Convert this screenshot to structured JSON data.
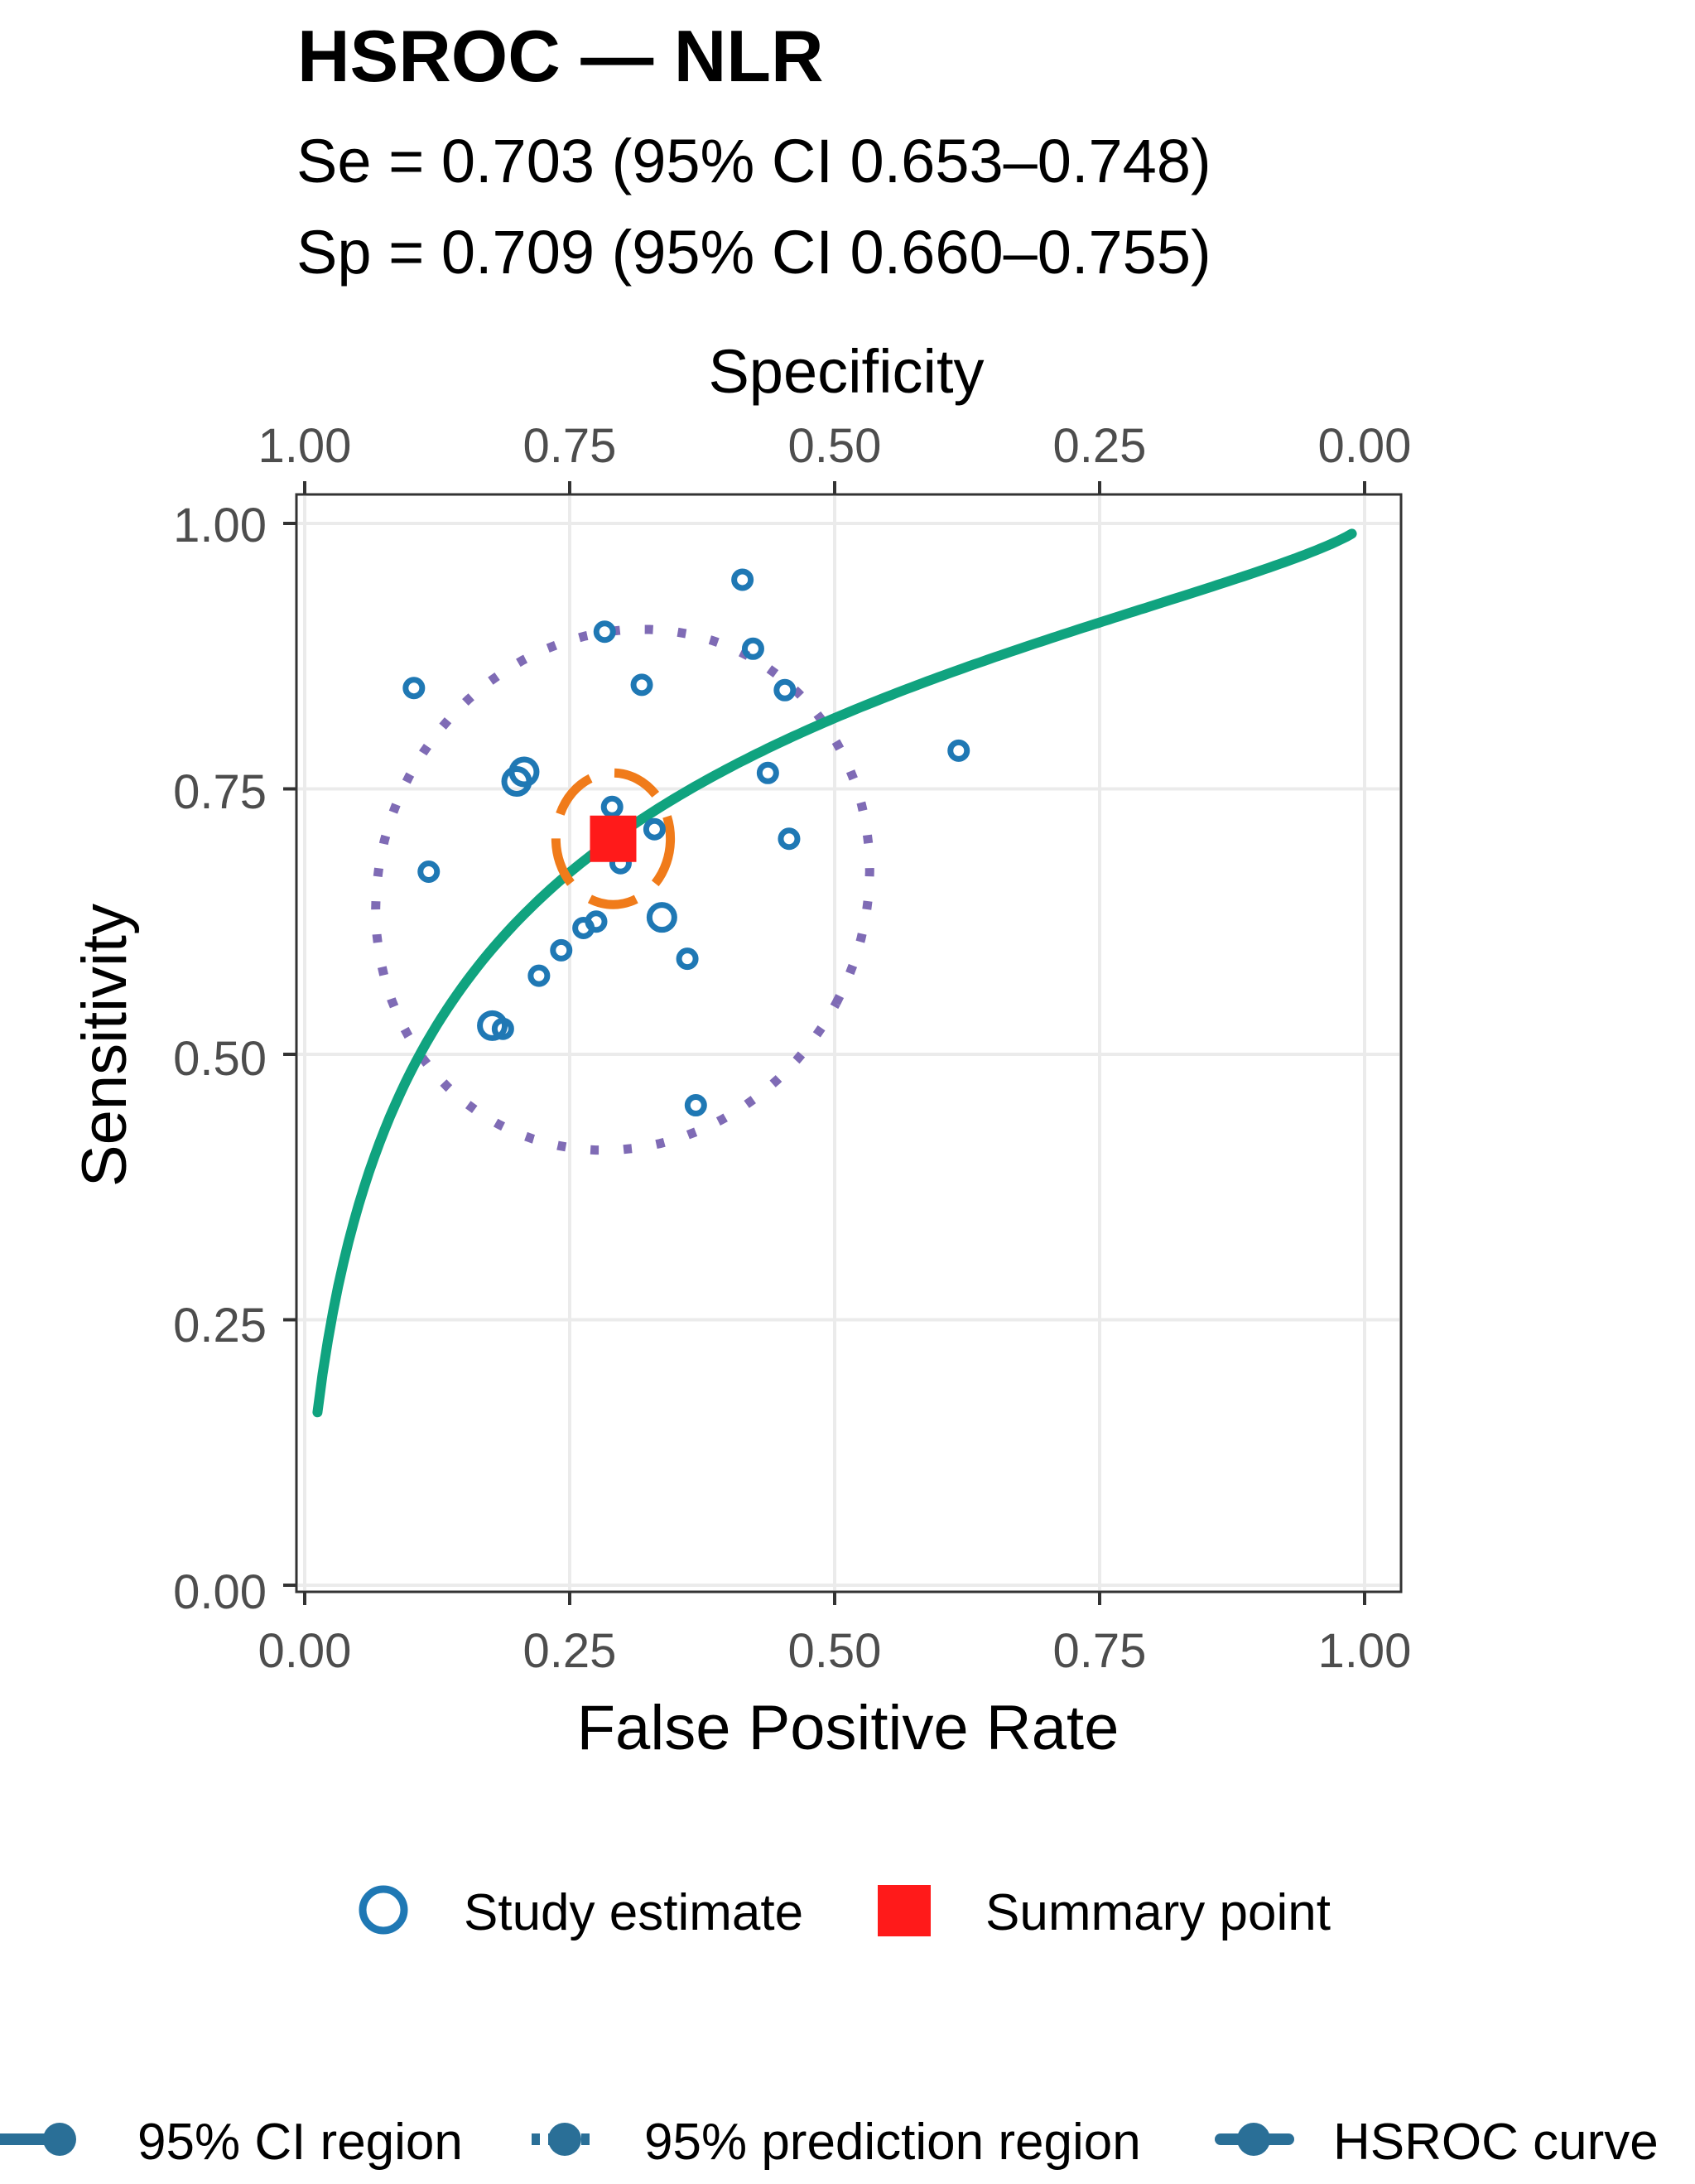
{
  "chart_data": {
    "type": "scatter",
    "title": "HSROC — NLR",
    "subtitle_lines": [
      "Se = 0.703 (95% CI 0.653–0.748)",
      "Sp = 0.709 (95% CI 0.660–0.755)"
    ],
    "xlabel": "False Positive Rate",
    "ylabel": "Sensitivity",
    "top_xlabel": "Specificity",
    "xlim": [
      0,
      1
    ],
    "ylim": [
      0,
      1
    ],
    "x_ticks": [
      "0.00",
      "0.25",
      "0.50",
      "0.75",
      "1.00"
    ],
    "y_ticks": [
      "0.00",
      "0.25",
      "0.50",
      "0.75",
      "1.00"
    ],
    "top_ticks": [
      "1.00",
      "0.75",
      "0.50",
      "0.25",
      "0.00"
    ],
    "grid": true,
    "colors": {
      "study": "#1f78b4",
      "summary": "#ff1a1a",
      "curve": "#10a37f",
      "ci_region": "#f07b1a",
      "prediction_region": "#7f6bb5",
      "legend_marker": "#2a6f97"
    },
    "study_points": [
      {
        "x": 0.413,
        "y": 0.947,
        "size": "small"
      },
      {
        "x": 0.283,
        "y": 0.898,
        "size": "small"
      },
      {
        "x": 0.423,
        "y": 0.882,
        "size": "small"
      },
      {
        "x": 0.103,
        "y": 0.845,
        "size": "small"
      },
      {
        "x": 0.318,
        "y": 0.848,
        "size": "small"
      },
      {
        "x": 0.453,
        "y": 0.843,
        "size": "small"
      },
      {
        "x": 0.617,
        "y": 0.786,
        "size": "small"
      },
      {
        "x": 0.437,
        "y": 0.765,
        "size": "small"
      },
      {
        "x": 0.207,
        "y": 0.766,
        "size": "large"
      },
      {
        "x": 0.2,
        "y": 0.757,
        "size": "large"
      },
      {
        "x": 0.29,
        "y": 0.733,
        "size": "small"
      },
      {
        "x": 0.33,
        "y": 0.712,
        "size": "small"
      },
      {
        "x": 0.457,
        "y": 0.703,
        "size": "small"
      },
      {
        "x": 0.117,
        "y": 0.672,
        "size": "small"
      },
      {
        "x": 0.298,
        "y": 0.68,
        "size": "small"
      },
      {
        "x": 0.337,
        "y": 0.629,
        "size": "large"
      },
      {
        "x": 0.275,
        "y": 0.625,
        "size": "small"
      },
      {
        "x": 0.263,
        "y": 0.619,
        "size": "small"
      },
      {
        "x": 0.242,
        "y": 0.598,
        "size": "small"
      },
      {
        "x": 0.361,
        "y": 0.59,
        "size": "small"
      },
      {
        "x": 0.221,
        "y": 0.574,
        "size": "small"
      },
      {
        "x": 0.177,
        "y": 0.527,
        "size": "large"
      },
      {
        "x": 0.187,
        "y": 0.524,
        "size": "small"
      },
      {
        "x": 0.369,
        "y": 0.452,
        "size": "small"
      }
    ],
    "summary_point": {
      "x": 0.291,
      "y": 0.703
    },
    "legends": {
      "top": [
        {
          "key": "study",
          "label": "Study estimate"
        },
        {
          "key": "summary",
          "label": "Summary point"
        }
      ],
      "bottom": [
        {
          "key": "ci",
          "label": "95% CI region"
        },
        {
          "key": "prediction",
          "label": "95% prediction region"
        },
        {
          "key": "curve",
          "label": "HSROC curve"
        }
      ]
    }
  }
}
